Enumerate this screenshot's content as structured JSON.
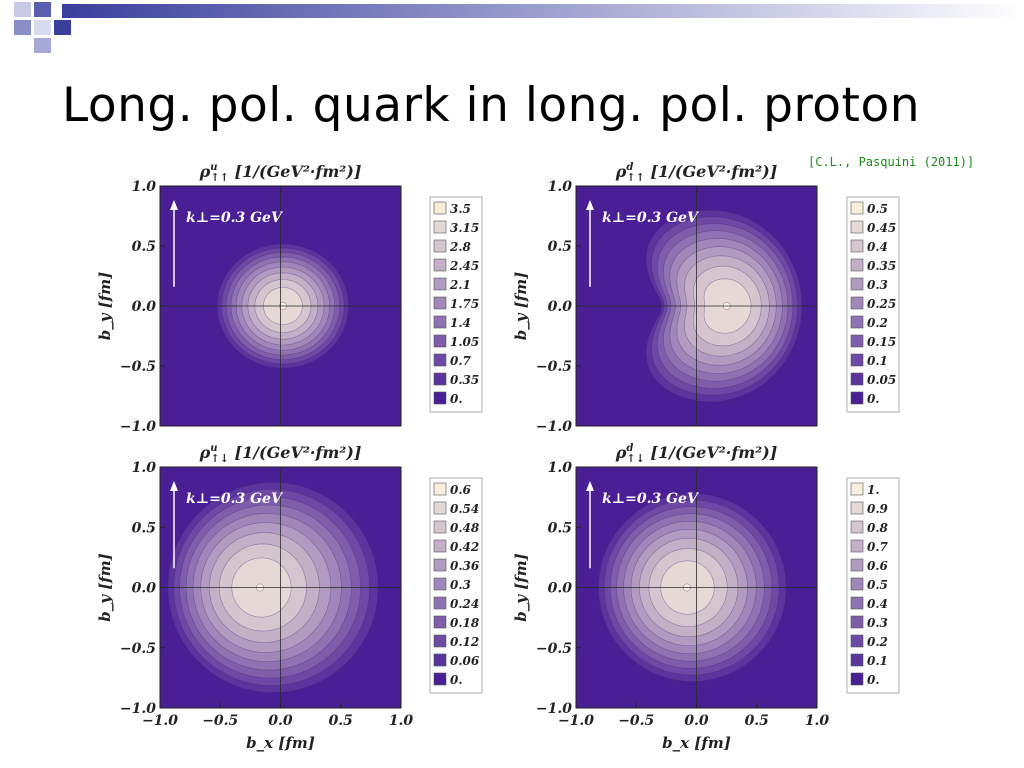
{
  "slide": {
    "title": "Long. pol. quark in long. pol. proton",
    "citation": "[C.L., Pasquini (2011)]"
  },
  "colors": {
    "title_bar_start": "#3a3f9c",
    "title_bar_end": "#ffffff",
    "contour_low": "#4a1f96",
    "contour_high": "#f7eedc",
    "citation": "#1a8a1a"
  },
  "chart_data": [
    {
      "type": "contour",
      "id": "u-parallel",
      "title": {
        "rho": "ρ",
        "sup": "u",
        "sub": "↑↑",
        "unit": " [1/(GeV²·fm²)]"
      },
      "annotation": "k⊥=0.3 GeV",
      "xlabel": "",
      "ylabel": "b_y [fm]",
      "xlim": [
        -1.0,
        1.0
      ],
      "ylim": [
        -1.0,
        1.0
      ],
      "yticks": [
        "1.0",
        "0.5",
        "0.0",
        "−0.5",
        "−1.0"
      ],
      "xticks": [],
      "legend_levels": [
        "3.5",
        "3.15",
        "2.8",
        "2.45",
        "2.1",
        "1.75",
        "1.4",
        "1.05",
        "0.7",
        "0.35",
        "0."
      ],
      "shape": {
        "cx": 0.02,
        "cy": 0.0,
        "rx": 0.55,
        "ry": 0.52,
        "peak_shift": 0.0,
        "cusp": 0.0
      }
    },
    {
      "type": "contour",
      "id": "d-parallel",
      "title": {
        "rho": "ρ",
        "sup": "d",
        "sub": "↑↑",
        "unit": " [1/(GeV²·fm²)]"
      },
      "annotation": "k⊥=0.3 GeV",
      "xlabel": "",
      "ylabel": "b_y [fm]",
      "xlim": [
        -1.0,
        1.0
      ],
      "ylim": [
        -1.0,
        1.0
      ],
      "yticks": [
        "1.0",
        "0.5",
        "0.0",
        "−0.5",
        "−1.0"
      ],
      "xticks": [],
      "legend_levels": [
        "0.5",
        "0.45",
        "0.4",
        "0.35",
        "0.3",
        "0.25",
        "0.2",
        "0.15",
        "0.1",
        "0.05",
        "0."
      ],
      "shape": {
        "cx": 0.1,
        "cy": 0.0,
        "rx": 0.78,
        "ry": 0.82,
        "peak_shift": 0.15,
        "cusp": 0.5
      }
    },
    {
      "type": "contour",
      "id": "u-antiparallel",
      "title": {
        "rho": "ρ",
        "sup": "u",
        "sub": "↑↓",
        "unit": " [1/(GeV²·fm²)]"
      },
      "annotation": "k⊥=0.3 GeV",
      "xlabel": "b_x [fm]",
      "ylabel": "b_y [fm]",
      "xlim": [
        -1.0,
        1.0
      ],
      "ylim": [
        -1.0,
        1.0
      ],
      "yticks": [
        "1.0",
        "0.5",
        "0.0",
        "−0.5",
        "−1.0"
      ],
      "xticks": [
        "−1.0",
        "−0.5",
        "0.0",
        "0.5",
        "1.0"
      ],
      "legend_levels": [
        "0.6",
        "0.54",
        "0.48",
        "0.42",
        "0.36",
        "0.3",
        "0.24",
        "0.18",
        "0.12",
        "0.06",
        "0."
      ],
      "shape": {
        "cx": -0.05,
        "cy": 0.0,
        "rx": 0.9,
        "ry": 0.9,
        "peak_shift": -0.12,
        "cusp": 0.0
      }
    },
    {
      "type": "contour",
      "id": "d-antiparallel",
      "title": {
        "rho": "ρ",
        "sup": "d",
        "sub": "↑↓",
        "unit": " [1/(GeV²·fm²)]"
      },
      "annotation": "k⊥=0.3 GeV",
      "xlabel": "b_x [fm]",
      "ylabel": "b_y [fm]",
      "xlim": [
        -1.0,
        1.0
      ],
      "ylim": [
        -1.0,
        1.0
      ],
      "yticks": [
        "1.0",
        "0.5",
        "0.0",
        "−0.5",
        "−1.0"
      ],
      "xticks": [
        "−1.0",
        "−0.5",
        "0.0",
        "0.5",
        "1.0"
      ],
      "legend_levels": [
        "1.",
        "0.9",
        "0.8",
        "0.7",
        "0.6",
        "0.5",
        "0.4",
        "0.3",
        "0.2",
        "0.1",
        "0."
      ],
      "shape": {
        "cx": -0.03,
        "cy": 0.0,
        "rx": 0.8,
        "ry": 0.8,
        "peak_shift": -0.05,
        "cusp": 0.0
      }
    }
  ]
}
